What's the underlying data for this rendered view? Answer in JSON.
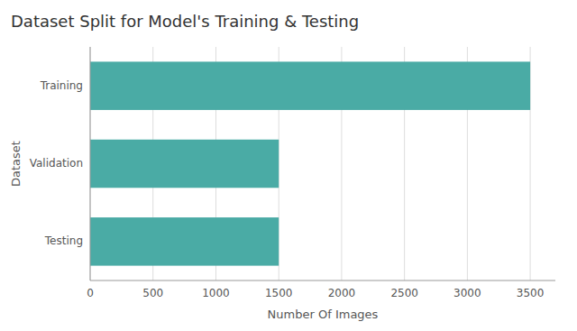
{
  "chart_data": {
    "type": "bar",
    "orientation": "horizontal",
    "title": "Dataset Split for Model's Training & Testing",
    "x_label": "Number Of Images",
    "y_label": "Dataset",
    "categories": [
      "Testing",
      "Validation",
      "Training"
    ],
    "values": [
      1500,
      1500,
      3500
    ],
    "color": "#4aaba5",
    "xlim": [
      0,
      3700
    ],
    "xticks": [
      0,
      500,
      1000,
      1500,
      2000,
      2500,
      3000,
      3500
    ],
    "grid": true
  }
}
